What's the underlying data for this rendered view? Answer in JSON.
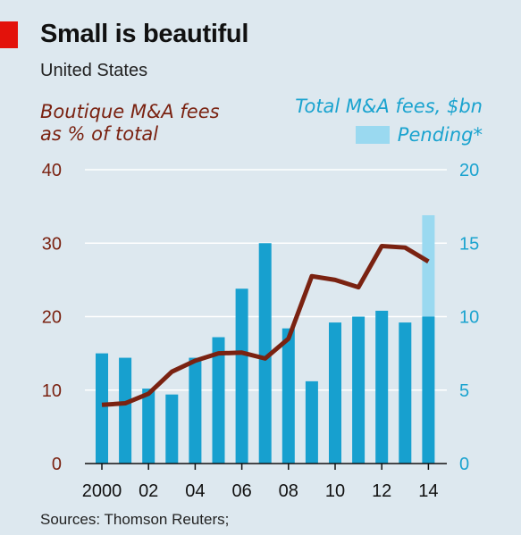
{
  "header": {
    "title": "Small is beautiful",
    "subtitle": "United States"
  },
  "footer": {
    "source": "Sources: Thomson Reuters;"
  },
  "colors": {
    "accent": "#e3120b",
    "bars": "#17a0cf",
    "pending": "#9ad9f0",
    "line": "#7a2211",
    "left_axis_text": "#7a2211",
    "right_axis_text": "#1aa3cf"
  },
  "chart_data": {
    "type": "bar",
    "title": "Small is beautiful",
    "subtitle": "United States",
    "x": [
      2000,
      2001,
      2002,
      2003,
      2004,
      2005,
      2006,
      2007,
      2008,
      2009,
      2010,
      2011,
      2012,
      2013,
      2014
    ],
    "x_tick_labels": [
      "2000",
      "02",
      "04",
      "06",
      "08",
      "10",
      "12",
      "14"
    ],
    "x_tick_years": [
      2000,
      2002,
      2004,
      2006,
      2008,
      2010,
      2012,
      2014
    ],
    "series": [
      {
        "name": "Total M&A fees, $bn",
        "type": "bar",
        "axis": "right",
        "values": [
          7.5,
          7.2,
          5.1,
          4.7,
          7.2,
          8.6,
          11.9,
          15.0,
          9.2,
          5.6,
          9.6,
          10.0,
          10.4,
          9.6,
          10.0
        ]
      },
      {
        "name": "Pending*",
        "type": "bar-stacked",
        "axis": "right",
        "values": [
          0,
          0,
          0,
          0,
          0,
          0,
          0,
          0,
          0,
          0,
          0,
          0,
          0,
          0,
          6.9
        ]
      },
      {
        "name": "Boutique M&A fees as % of total",
        "type": "line",
        "axis": "left",
        "values": [
          8.0,
          8.2,
          9.5,
          12.5,
          14.0,
          15.0,
          15.1,
          14.3,
          17.0,
          25.5,
          25.0,
          24.0,
          29.6,
          29.4,
          27.5
        ]
      }
    ],
    "left_axis": {
      "label_lines": [
        "Boutique M&A fees",
        "as % of total"
      ],
      "ylim": [
        0,
        40
      ],
      "ticks": [
        0,
        10,
        20,
        30,
        40
      ]
    },
    "right_axis": {
      "label": "Total M&A fees, $bn",
      "ylim": [
        0,
        20
      ],
      "ticks": [
        0,
        5,
        10,
        15,
        20
      ]
    },
    "legend": {
      "pending_label": "Pending*",
      "placement": "top-right"
    },
    "grid": true
  }
}
